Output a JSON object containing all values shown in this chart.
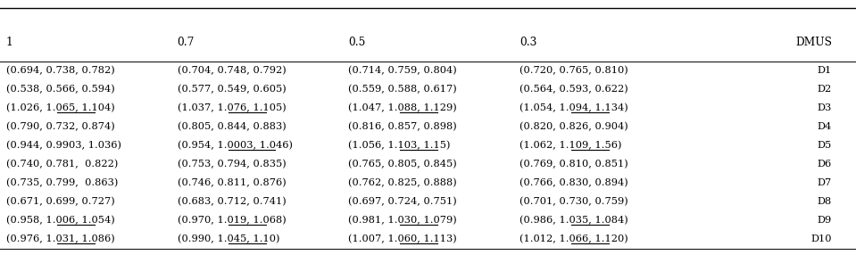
{
  "headers": [
    "1",
    "0.7",
    "0.5",
    "0.3",
    "DMUS"
  ],
  "rows": [
    [
      "(0.694, 0.738, 0.782)",
      "(0.704, 0.748, 0.792)",
      "(0.714, 0.759, 0.804)",
      "(0.720, 0.765, 0.810)",
      "D1"
    ],
    [
      "(0.538, 0.566, 0.594)",
      "(0.577, 0.549, 0.605)",
      "(0.559, 0.588, 0.617)",
      "(0.564, 0.593, 0.622)",
      "D2"
    ],
    [
      "(1.026, 1.065, 1.104)",
      "(1.037, 1.076, 1.105)",
      "(1.047, 1.088, 1.129)",
      "(1.054, 1.094, 1.134)",
      "D3"
    ],
    [
      "(0.790, 0.732, 0.874)",
      "(0.805, 0.844, 0.883)",
      "(0.816, 0.857, 0.898)",
      "(0.820, 0.826, 0.904)",
      "D4"
    ],
    [
      "(0.944, 0.9903, 1.036)",
      "(0.954, 1.0003, 1.046)",
      "(1.056, 1.103, 1.15)",
      "(1.062, 1.109, 1.56)",
      "D5"
    ],
    [
      "(0.740, 0.781,  0.822)",
      "(0.753, 0.794, 0.835)",
      "(0.765, 0.805, 0.845)",
      "(0.769, 0.810, 0.851)",
      "D6"
    ],
    [
      "(0.735, 0.799,  0.863)",
      "(0.746, 0.811, 0.876)",
      "(0.762, 0.825, 0.888)",
      "(0.766, 0.830, 0.894)",
      "D7"
    ],
    [
      "(0.671, 0.699, 0.727)",
      "(0.683, 0.712, 0.741)",
      "(0.697, 0.724, 0.751)",
      "(0.701, 0.730, 0.759)",
      "D8"
    ],
    [
      "(0.958, 1.006, 1.054)",
      "(0.970, 1.019, 1.068)",
      "(0.981, 1.030, 1.079)",
      "(0.986, 1.035, 1.084)",
      "D9"
    ],
    [
      "(0.976, 1.031, 1.086)",
      "(0.990, 1.045, 1.10)",
      "(1.007, 1.060, 1.113)",
      "(1.012, 1.066, 1.120)",
      "D10"
    ]
  ],
  "underline_info": {
    "D1": [],
    "D2": [],
    "D3": [
      "1.065",
      "1.076",
      "1.088",
      "1.094"
    ],
    "D4": [],
    "D5": [
      "1.0003",
      "1.103",
      "1.109"
    ],
    "D6": [],
    "D7": [],
    "D8": [],
    "D9": [
      "1.006",
      "1.019",
      "1.030",
      "1.035"
    ],
    "D10": [
      "1.031",
      "1.045",
      "1.060",
      "1.066"
    ]
  },
  "fontsize": 8.2,
  "header_fontsize": 8.8,
  "bg_color": "#ffffff"
}
